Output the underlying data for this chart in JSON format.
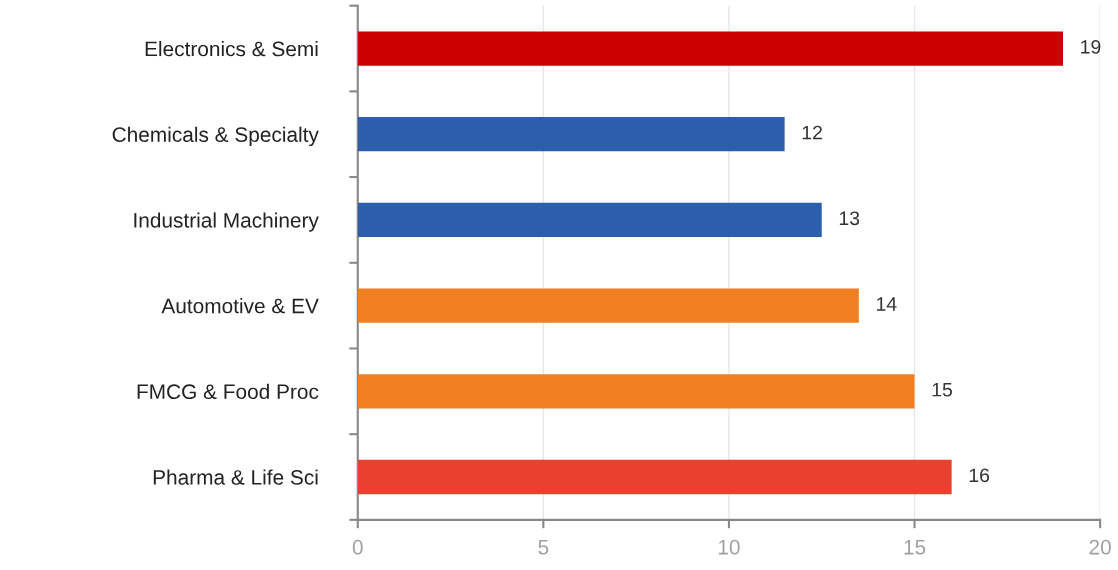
{
  "chart_data": {
    "type": "bar",
    "orientation": "horizontal",
    "categories": [
      "Electronics & Semi",
      "Chemicals & Specialty",
      "Industrial Machinery",
      "Automotive & EV",
      "FMCG & Food Proc",
      "Pharma & Life Sci"
    ],
    "values": [
      19,
      11.5,
      12.5,
      13.5,
      15,
      16
    ],
    "colors": [
      "#cc0000",
      "#2b5fad",
      "#2b5fad",
      "#f07f22",
      "#f07f22",
      "#e8412f"
    ],
    "value_labels": [
      "19",
      "12",
      "13",
      "14",
      "15",
      "16"
    ],
    "xlim": [
      0,
      20
    ],
    "xticks": [
      0,
      5,
      10,
      15,
      20
    ],
    "grid": "x"
  }
}
